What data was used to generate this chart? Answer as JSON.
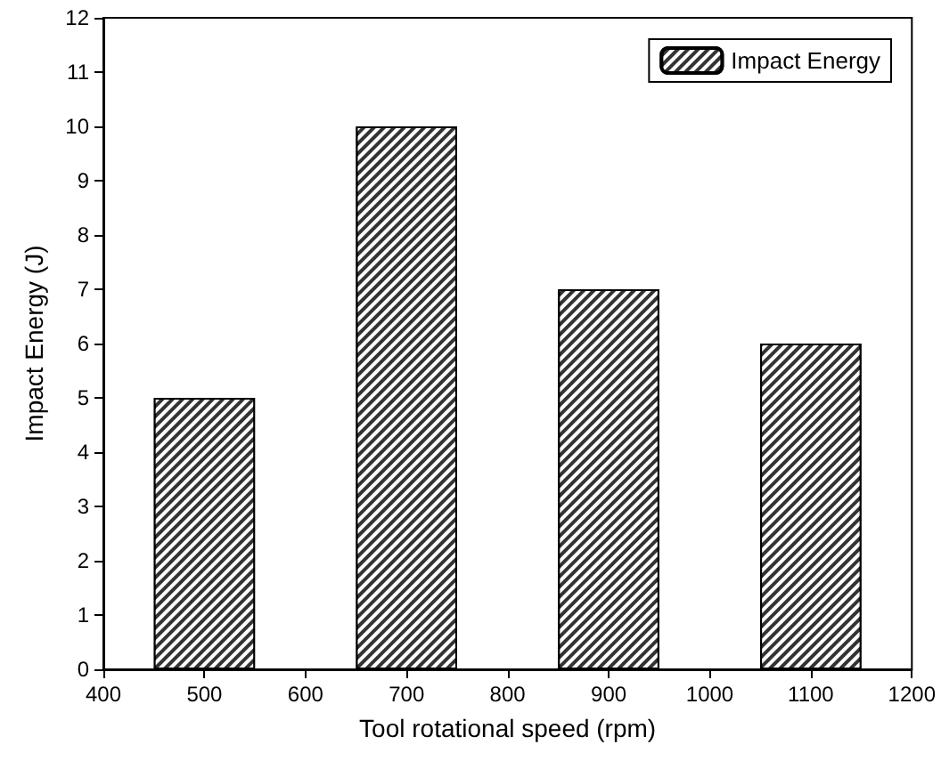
{
  "chart_data": {
    "type": "bar",
    "xlabel": "Tool rotational speed (rpm)",
    "ylabel": "Impact Energy (J)",
    "x": [
      500,
      700,
      900,
      1100
    ],
    "series": [
      {
        "name": "Impact Energy",
        "color": "#333333",
        "values": [
          5,
          10,
          7,
          6
        ]
      }
    ],
    "xlim": [
      400,
      1200
    ],
    "xticks": [
      400,
      500,
      600,
      700,
      800,
      900,
      1000,
      1100,
      1200
    ],
    "ylim": [
      0,
      12
    ],
    "yticks": [
      0,
      1,
      2,
      3,
      4,
      5,
      6,
      7,
      8,
      9,
      10,
      11,
      12
    ],
    "grid": false,
    "legend": "top right"
  }
}
